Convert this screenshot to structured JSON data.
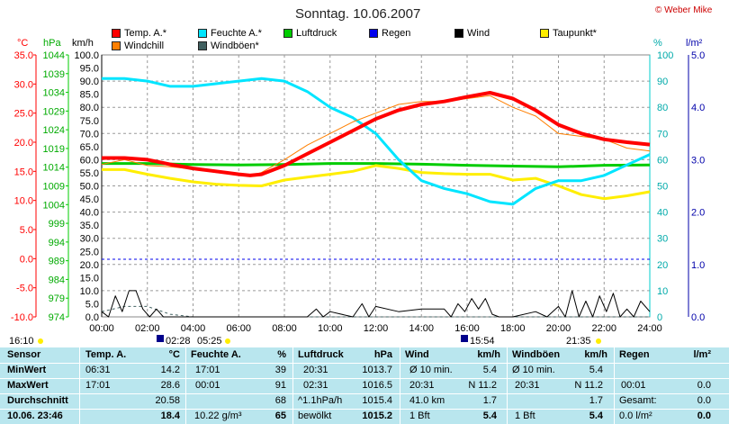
{
  "header": {
    "title": "Sonntag. 10.06.2007",
    "copyright": "© Weber Mike"
  },
  "legend": [
    {
      "label": "Temp. A.*",
      "color": "#ff0000"
    },
    {
      "label": "Feuchte A.*",
      "color": "#00e5ff"
    },
    {
      "label": "Luftdruck",
      "color": "#00cc00"
    },
    {
      "label": "Regen",
      "color": "#0000ee"
    },
    {
      "label": "Wind",
      "color": "#000000"
    },
    {
      "label": "Taupunkt*",
      "color": "#ffee00"
    },
    {
      "label": "Windchill",
      "color": "#ff7f00"
    },
    {
      "label": "Windböen*",
      "color": "#406060"
    }
  ],
  "axis_heads": {
    "temp": "°C",
    "press": "hPa",
    "wind": "km/h",
    "hum": "%",
    "rain": "l/m²"
  },
  "chart_data": {
    "type": "line",
    "title": "Sonntag. 10.06.2007",
    "x_ticks": [
      "00:00",
      "02:00",
      "04:00",
      "06:00",
      "08:00",
      "10:00",
      "12:00",
      "14:00",
      "16:00",
      "18:00",
      "20:00",
      "22:00",
      "24:00"
    ],
    "xlim": [
      0,
      24
    ],
    "axes": {
      "temp_c": {
        "ticks": [
          35.0,
          30.0,
          25.0,
          20.0,
          15.0,
          10.0,
          5.0,
          0.0,
          -5.0,
          -10.0
        ],
        "range": [
          -10,
          35
        ],
        "color": "#ff0000"
      },
      "pressure_hpa": {
        "ticks": [
          1044,
          1039,
          1034,
          1029,
          1024,
          1019,
          1014,
          1009,
          1004,
          999,
          994,
          989,
          984,
          979,
          974
        ],
        "range": [
          974,
          1044
        ],
        "color": "#00cc00"
      },
      "wind_kmh": {
        "ticks": [
          100.0,
          95.0,
          90.0,
          85.0,
          80.0,
          75.0,
          70.0,
          65.0,
          60.0,
          55.0,
          50.0,
          45.0,
          40.0,
          35.0,
          30.0,
          25.0,
          20.0,
          15.0,
          10.0,
          5.0,
          0.0
        ],
        "range": [
          0,
          100
        ],
        "color": "#000000"
      },
      "humidity_pct": {
        "ticks": [
          100,
          90,
          80,
          70,
          60,
          50,
          40,
          30,
          20,
          10,
          0
        ],
        "range": [
          0,
          100
        ],
        "color": "#00cccc"
      },
      "rain_lm2": {
        "ticks": [
          "5.0",
          "4.0",
          "3.0",
          "2.0",
          "1.0",
          "0.0"
        ],
        "range": [
          0,
          5
        ],
        "color": "#0000aa"
      }
    },
    "series": [
      {
        "name": "Temp. A.*",
        "axis": "temp",
        "color": "#ff0000",
        "width": 4,
        "x": [
          0,
          1,
          2,
          3,
          4,
          5,
          6,
          6.5,
          7,
          8,
          9,
          10,
          11,
          12,
          13,
          14,
          15,
          16,
          17,
          18,
          19,
          20,
          21,
          22,
          23,
          24
        ],
        "y": [
          17.3,
          17.3,
          17.0,
          16.2,
          15.5,
          15.0,
          14.5,
          14.3,
          14.5,
          16.0,
          18.0,
          20.0,
          22.0,
          24.0,
          25.5,
          26.5,
          27.0,
          27.8,
          28.5,
          27.5,
          25.5,
          23.0,
          21.5,
          20.5,
          20.0,
          19.6
        ]
      },
      {
        "name": "Windchill",
        "axis": "temp",
        "color": "#ff7f00",
        "width": 1,
        "x": [
          0,
          1,
          2,
          3,
          4,
          5,
          6,
          6.5,
          7,
          8,
          9,
          10,
          11,
          12,
          13,
          14,
          15,
          16,
          17,
          18,
          19,
          20,
          21,
          22,
          23,
          24
        ],
        "y": [
          16.2,
          17.0,
          16.0,
          15.8,
          15.4,
          14.8,
          14.4,
          14.2,
          14.8,
          17.0,
          19.5,
          21.5,
          23.5,
          25.0,
          26.5,
          27.0,
          27.0,
          27.5,
          28.0,
          26.0,
          24.5,
          21.5,
          21.0,
          20.5,
          19.0,
          18.5
        ]
      },
      {
        "name": "Feuchte A.*",
        "axis": "hum",
        "color": "#00e5ff",
        "width": 3,
        "x": [
          0,
          1,
          2,
          3,
          4,
          5,
          6,
          7,
          8,
          9,
          10,
          11,
          12,
          13,
          14,
          15,
          16,
          17,
          18,
          19,
          20,
          21,
          22,
          23,
          24
        ],
        "y": [
          91,
          91,
          90,
          88,
          88,
          89,
          90,
          91,
          90,
          86,
          80,
          76,
          70,
          60,
          52,
          49,
          47,
          44,
          43,
          49,
          52,
          52,
          54,
          58,
          62
        ]
      },
      {
        "name": "Taupunkt*",
        "axis": "temp",
        "color": "#ffee00",
        "width": 3,
        "x": [
          0,
          1,
          2,
          3,
          4,
          5,
          6,
          7,
          8,
          9,
          10,
          11,
          12,
          13,
          14,
          15,
          16,
          17,
          18,
          19,
          20,
          21,
          22,
          23,
          24
        ],
        "y": [
          15.3,
          15.3,
          14.5,
          13.8,
          13.2,
          12.8,
          12.6,
          12.5,
          13.5,
          14.0,
          14.5,
          15.0,
          16.0,
          15.5,
          14.8,
          14.6,
          14.5,
          14.5,
          13.5,
          13.8,
          12.5,
          11.0,
          10.3,
          10.8,
          11.5
        ]
      },
      {
        "name": "Luftdruck",
        "axis": "press",
        "color": "#00cc00",
        "width": 3,
        "x": [
          0,
          2,
          4,
          6,
          8,
          10,
          12,
          14,
          16,
          18,
          20,
          22,
          24
        ],
        "y": [
          1015.0,
          1015.0,
          1014.7,
          1014.6,
          1014.7,
          1015.0,
          1015.0,
          1014.8,
          1014.5,
          1014.3,
          1014.1,
          1014.5,
          1014.6
        ]
      },
      {
        "name": "Regen",
        "axis": "rain",
        "color": "#0000ee",
        "width": 1,
        "dashed": true,
        "x": [
          0,
          24
        ],
        "y": [
          1.1,
          1.1
        ]
      },
      {
        "name": "Wind",
        "axis": "wind",
        "color": "#000000",
        "width": 1,
        "x": [
          0,
          0.3,
          0.6,
          0.9,
          1.2,
          1.5,
          1.8,
          2.1,
          2.4,
          2.7,
          3,
          4,
          5,
          6,
          7,
          8,
          9,
          9.4,
          9.7,
          10,
          11,
          11.4,
          11.7,
          12,
          13,
          14,
          15,
          15.3,
          15.6,
          15.9,
          16.2,
          16.5,
          16.8,
          17.1,
          17.4,
          18,
          19,
          19.5,
          20,
          20.3,
          20.6,
          20.9,
          21.2,
          21.5,
          21.8,
          22.1,
          22.4,
          22.7,
          23,
          23.3,
          23.6,
          24
        ],
        "y": [
          2,
          0,
          8,
          2,
          10,
          10,
          3,
          0,
          3,
          0,
          0,
          0,
          0,
          0,
          0,
          0,
          0,
          3,
          0,
          2,
          0,
          5,
          0,
          4,
          2,
          3,
          3,
          0,
          5,
          2,
          7,
          3,
          7,
          1,
          0,
          0,
          2,
          0,
          4,
          0,
          10,
          0,
          6,
          0,
          8,
          2,
          9,
          0,
          3,
          0,
          6,
          2
        ]
      },
      {
        "name": "Windböen*",
        "axis": "wind",
        "color": "#406060",
        "width": 1,
        "dashed": true,
        "x": [
          0,
          1,
          2,
          3,
          4,
          5,
          6,
          24
        ],
        "y": [
          2,
          4,
          4,
          1,
          0,
          0,
          0,
          0
        ]
      }
    ]
  },
  "time_markers": {
    "left_time": "16:10",
    "sunrise_a": "02:28",
    "sunrise_b": "05:25",
    "mid_time": "15:54",
    "sunset": "21:35"
  },
  "stats": {
    "headers": {
      "sensor": "Sensor",
      "temp": "Temp. A.",
      "temp_unit": "°C",
      "hum": "Feuchte A.",
      "hum_unit": "%",
      "press": "Luftdruck",
      "press_unit": "hPa",
      "wind": "Wind",
      "wind_unit": "km/h",
      "gust": "Windböen",
      "gust_unit": "km/h",
      "rain": "Regen",
      "rain_unit": "l/m²"
    },
    "min": {
      "label": "MinWert",
      "temp_time": "06:31",
      "temp": "14.2",
      "hum_time": "17:01",
      "hum": "39",
      "press_time": "20:31",
      "press": "1013.7",
      "wind_desc": "Ø 10 min.",
      "wind": "5.4",
      "gust_desc": "Ø 10 min.",
      "gust": "5.4",
      "rain_time": "",
      "rain": ""
    },
    "max": {
      "label": "MaxWert",
      "temp_time": "17:01",
      "temp": "28.6",
      "hum_time": "00:01",
      "hum": "91",
      "press_time": "02:31",
      "press": "1016.5",
      "wind_time": "20:31",
      "wind_dir": "N 11.2",
      "gust_time": "20:31",
      "gust_dir": "N 11.2",
      "rain_time": "00:01",
      "rain": "0.0"
    },
    "avg": {
      "label": "Durchschnitt",
      "temp": "20.58",
      "hum": "68",
      "press_trend": "^1.1hPa/h",
      "press": "1015.4",
      "wind_dist": "41.0 km",
      "wind": "1.7",
      "gust": "1.7",
      "rain_label": "Gesamt:",
      "rain": "0.0"
    },
    "current": {
      "label": "10.06. 23:46",
      "temp": "18.4",
      "abs_hum": "10.22 g/m³",
      "hum": "65",
      "weather": "bewölkt",
      "press": "1015.2",
      "wind_bft": "1 Bft",
      "wind": "5.4",
      "gust_bft": "1 Bft",
      "gust": "5.4",
      "rain_rate": "0.0 l/m²",
      "rain": "0.0"
    }
  }
}
